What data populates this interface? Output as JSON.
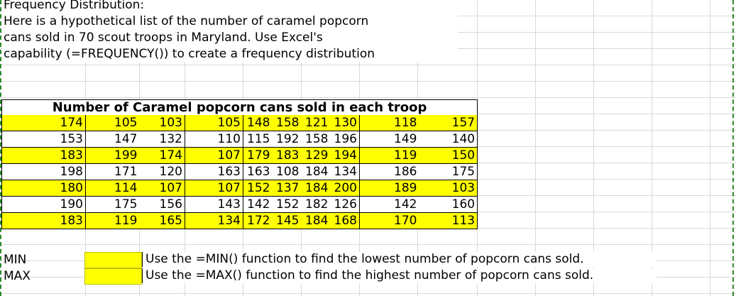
{
  "intro": {
    "line1": "Frequency Distribution:",
    "line2": "Here is a hypothetical list of the number of caramel popcorn",
    "line3": "cans sold in 70 scout troops in Maryland.  Use Excel's",
    "line4": "capability (=FREQUENCY()) to create a frequency distribution"
  },
  "table": {
    "title": "Number of Caramel popcorn cans sold in each troop",
    "rows": [
      [
        "174",
        "105",
        "103",
        "105",
        "148",
        "158",
        "121",
        "130",
        "118",
        "157"
      ],
      [
        "153",
        "147",
        "132",
        "110",
        "115",
        "192",
        "158",
        "196",
        "149",
        "140"
      ],
      [
        "183",
        "199",
        "174",
        "107",
        "179",
        "183",
        "129",
        "194",
        "119",
        "150"
      ],
      [
        "198",
        "171",
        "120",
        "163",
        "163",
        "108",
        "184",
        "134",
        "186",
        "175"
      ],
      [
        "180",
        "114",
        "107",
        "107",
        "152",
        "137",
        "184",
        "200",
        "189",
        "103"
      ],
      [
        "190",
        "175",
        "156",
        "143",
        "142",
        "152",
        "182",
        "126",
        "142",
        "160"
      ],
      [
        "183",
        "119",
        "165",
        "134",
        "172",
        "145",
        "184",
        "168",
        "170",
        "113"
      ]
    ]
  },
  "min": {
    "label": "MIN",
    "value": "",
    "instruction": "Use the =MIN() function to find the lowest number of popcorn cans sold."
  },
  "max": {
    "label": "MAX",
    "value": "",
    "instruction": "Use the =MAX() function to find the highest number of popcorn cans sold."
  },
  "colors": {
    "highlight": "#ffff00",
    "gridline": "#d9d9d9",
    "page_break": "#2a8a2a"
  }
}
